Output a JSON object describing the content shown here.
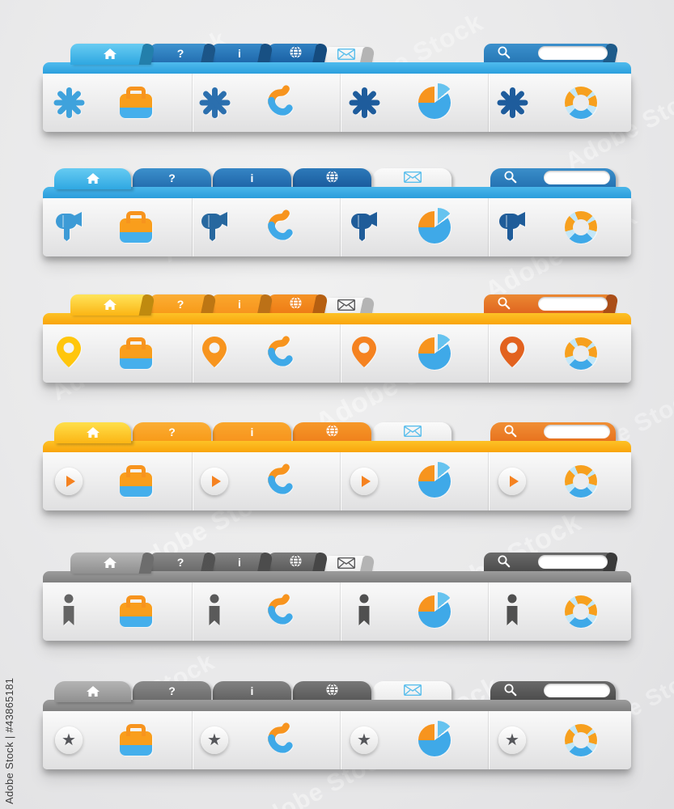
{
  "page": {
    "background": "#eaeaeb"
  },
  "watermarks": {
    "vertical_text": "Adobe Stock | #43865181",
    "diagonal_text": "Adobe Stock"
  },
  "tab_labels": {
    "help": "?",
    "info": "i"
  },
  "search": {
    "input_value": ""
  },
  "glyphs": {
    "star": "★"
  },
  "common_icons": {
    "briefcase": {
      "top": "#F99E1C",
      "bottom": "#45AFEC",
      "handle": "#F7941E"
    },
    "phone": {
      "earpiece": "#F7941E",
      "body": "#3FA9E8"
    },
    "pie_chart": {
      "main": "#3FA9E8",
      "wedge": "#F7941E",
      "detached_slice": "#66C3EF"
    },
    "life_ring": {
      "orange": "#F7A01E",
      "blue": "#3FA9E8",
      "light": "#C3E7F8"
    }
  },
  "navbars": [
    {
      "id": "blue-folder-tabs",
      "tab_style": "A",
      "decor_icon": "asterisk",
      "palette": {
        "active_tab": [
          "#68CCF2",
          "#2EA7E1"
        ],
        "help_tab": [
          "#3E93CF",
          "#2470B2"
        ],
        "info_tab": [
          "#3789C8",
          "#1F69AC"
        ],
        "globe_tab": [
          "#3181C2",
          "#1B62A5"
        ],
        "mail_tab": [
          "#FBFBFB",
          "#ECECEC"
        ],
        "search_tab": [
          "#3B90CC",
          "#2778B6"
        ],
        "strip": [
          "#4FBBEE",
          "#2B9FDD"
        ],
        "mail_icon": "#5ABEEC"
      },
      "decor_colors": [
        "#3FA2DC",
        "#2B6FAE",
        "#1E5C9C",
        "#1E5C9C"
      ]
    },
    {
      "id": "blue-rounded-tabs",
      "tab_style": "B",
      "decor_icon": "megaphone",
      "palette": {
        "active_tab": [
          "#66CBF2",
          "#2FA8E2"
        ],
        "help_tab": [
          "#3C90CC",
          "#246FB0"
        ],
        "info_tab": [
          "#3585C5",
          "#1F66A9"
        ],
        "globe_tab": [
          "#2D7ABA",
          "#1A5C9E"
        ],
        "mail_tab": [
          "#FBFBFB",
          "#ECECEC"
        ],
        "search_tab": [
          "#3A8ECA",
          "#2573B3"
        ],
        "strip": [
          "#4AB6EA",
          "#2B9DDB"
        ],
        "mail_icon": "#5ABEEC"
      },
      "decor_colors": [
        "#3D9BD6",
        "#27689F",
        "#1F5C99",
        "#1F5C99"
      ]
    },
    {
      "id": "orange-folder-tabs",
      "tab_style": "A",
      "decor_icon": "map-pin",
      "palette": {
        "active_tab": [
          "#FFE45A",
          "#FBB514"
        ],
        "help_tab": [
          "#FBAE35",
          "#F89B19"
        ],
        "info_tab": [
          "#FAA72C",
          "#F7941E"
        ],
        "globe_tab": [
          "#F59325",
          "#EE7D16"
        ],
        "mail_tab": [
          "#FBFBFB",
          "#ECECEC"
        ],
        "search_tab": [
          "#EB8832",
          "#E06620"
        ],
        "strip": [
          "#FDC226",
          "#F9A40C"
        ],
        "mail_icon": "#58585A"
      },
      "decor_colors": [
        "#FFC60D",
        "#F7941E",
        "#F58220",
        "#E2621F"
      ]
    },
    {
      "id": "orange-rounded-tabs",
      "tab_style": "B",
      "decor_icon": "play-button",
      "palette": {
        "active_tab": [
          "#FFDF4A",
          "#FBB514"
        ],
        "help_tab": [
          "#FBAE35",
          "#F89B19"
        ],
        "info_tab": [
          "#FAA72C",
          "#F7941E"
        ],
        "globe_tab": [
          "#F69829",
          "#F0821C"
        ],
        "mail_tab": [
          "#FBFBFB",
          "#ECECEC"
        ],
        "search_tab": [
          "#F08F35",
          "#E8731F"
        ],
        "strip": [
          "#FDC226",
          "#F9A40C"
        ],
        "mail_icon": "#5ABEEC"
      },
      "decor_colors": [
        "#F58220",
        "#F58220",
        "#F58220",
        "#F58220"
      ]
    },
    {
      "id": "gray-folder-tabs",
      "tab_style": "A",
      "decor_icon": "person",
      "palette": {
        "active_tab": [
          "#B7B7B7",
          "#8F8F8F"
        ],
        "help_tab": [
          "#8A8A8A",
          "#6B6B6B"
        ],
        "info_tab": [
          "#838383",
          "#646464"
        ],
        "globe_tab": [
          "#7B7B7B",
          "#5C5C5C"
        ],
        "mail_tab": [
          "#FBFBFB",
          "#ECECEC"
        ],
        "search_tab": [
          "#6A6A6A",
          "#4C4C4C"
        ],
        "strip": [
          "#9C9C9C",
          "#808080"
        ],
        "mail_icon": "#58585A"
      },
      "decor_colors": [
        "#646464",
        "#5A5A5A",
        "#505050",
        "#505050"
      ]
    },
    {
      "id": "gray-rounded-tabs",
      "tab_style": "B",
      "decor_icon": "star-button",
      "palette": {
        "active_tab": [
          "#B4B4B4",
          "#909090"
        ],
        "help_tab": [
          "#8A8A8A",
          "#6C6C6C"
        ],
        "info_tab": [
          "#828282",
          "#626262"
        ],
        "globe_tab": [
          "#787878",
          "#595959"
        ],
        "mail_tab": [
          "#FBFBFB",
          "#ECECEC"
        ],
        "search_tab": [
          "#696969",
          "#4D4D4D"
        ],
        "strip": [
          "#9C9C9C",
          "#808080"
        ],
        "mail_icon": "#5ABEEC"
      },
      "decor_colors": [
        "#55565A",
        "#55565A",
        "#55565A",
        "#55565A"
      ]
    }
  ]
}
